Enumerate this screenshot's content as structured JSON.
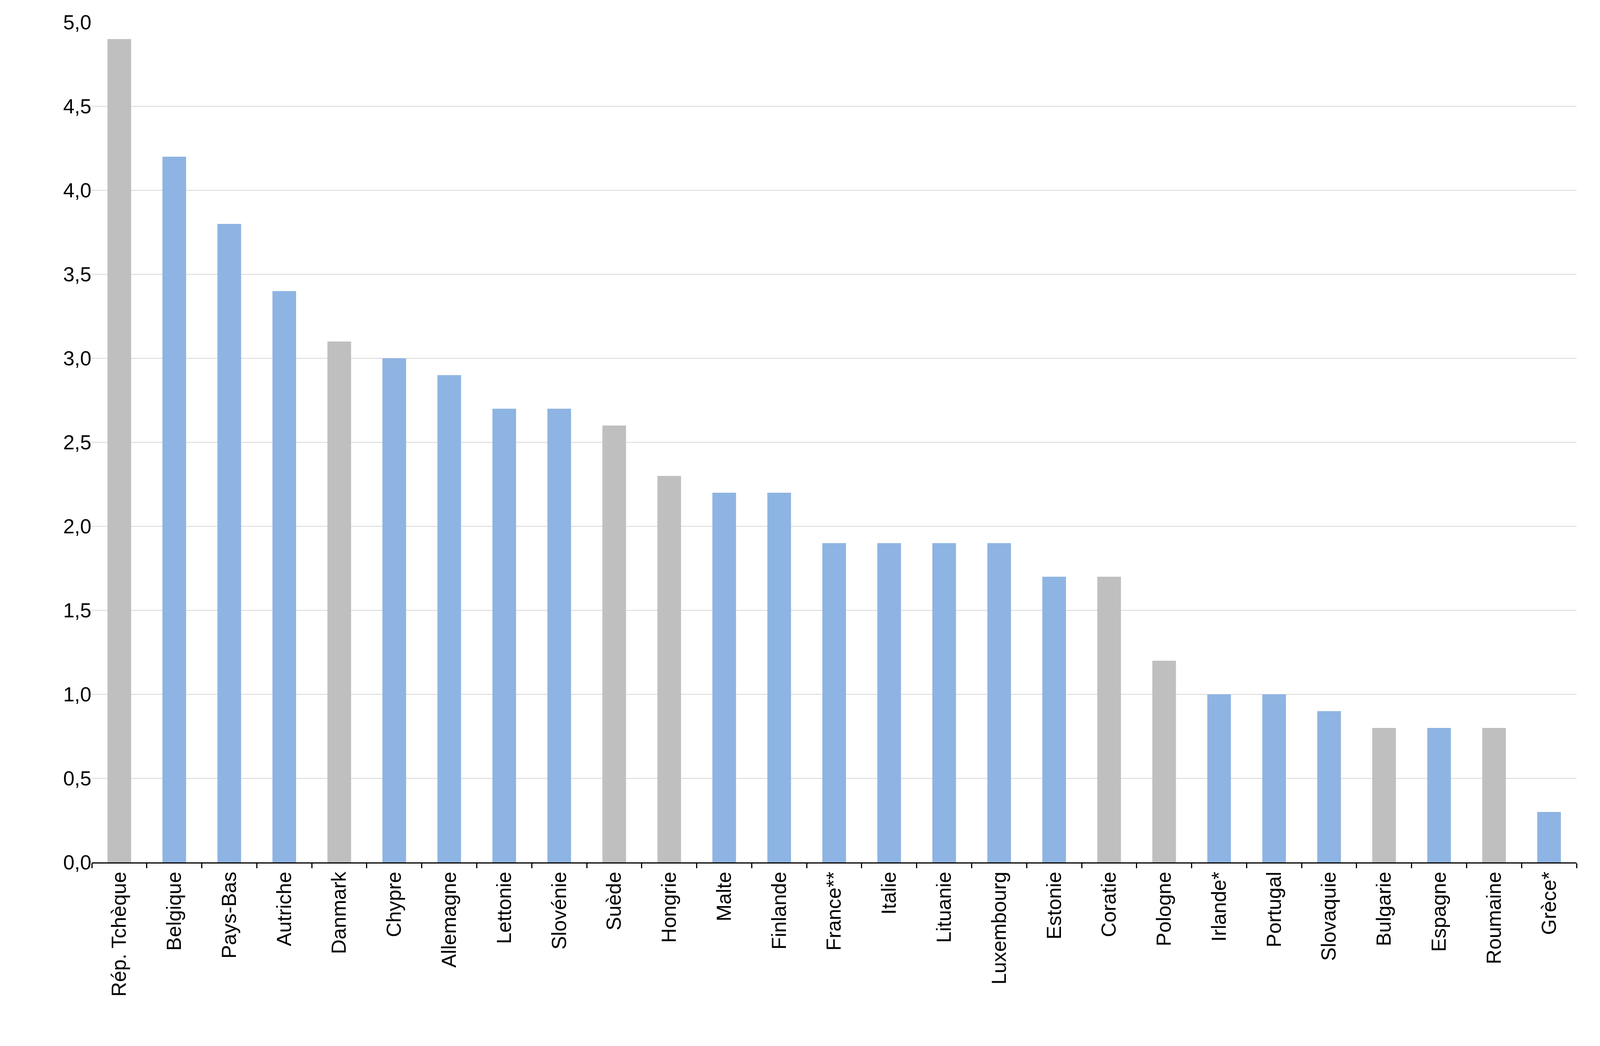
{
  "chart_data": {
    "type": "bar",
    "categories": [
      "Rép. Tchèque",
      "Belgique",
      "Pays-Bas",
      "Autriche",
      "Danmark",
      "Chypre",
      "Allemagne",
      "Lettonie",
      "Slovénie",
      "Suède",
      "Hongrie",
      "Malte",
      "Finlande",
      "France**",
      "Italie",
      "Lituanie",
      "Luxembourg",
      "Estonie",
      "Coratie",
      "Pologne",
      "Irlande*",
      "Portugal",
      "Slovaquie",
      "Bulgarie",
      "Espagne",
      "Roumaine",
      "Grèce*"
    ],
    "values": [
      4.9,
      4.2,
      3.8,
      3.4,
      3.1,
      3.0,
      2.9,
      2.7,
      2.7,
      2.6,
      2.3,
      2.2,
      2.2,
      1.9,
      1.9,
      1.9,
      1.9,
      1.7,
      1.7,
      1.2,
      1.0,
      1.0,
      0.9,
      0.8,
      0.8,
      0.8,
      0.3
    ],
    "colors": [
      "#bfbfbf",
      "#8eb4e3",
      "#8eb4e3",
      "#8eb4e3",
      "#bfbfbf",
      "#8eb4e3",
      "#8eb4e3",
      "#8eb4e3",
      "#8eb4e3",
      "#bfbfbf",
      "#bfbfbf",
      "#8eb4e3",
      "#8eb4e3",
      "#8eb4e3",
      "#8eb4e3",
      "#8eb4e3",
      "#8eb4e3",
      "#8eb4e3",
      "#bfbfbf",
      "#bfbfbf",
      "#8eb4e3",
      "#8eb4e3",
      "#8eb4e3",
      "#bfbfbf",
      "#8eb4e3",
      "#bfbfbf",
      "#8eb4e3"
    ],
    "ylim": [
      0,
      5
    ],
    "yticks": [
      {
        "value": 0,
        "label": "0,0"
      },
      {
        "value": 0.5,
        "label": "0,5"
      },
      {
        "value": 1,
        "label": "1,0"
      },
      {
        "value": 1.5,
        "label": "1,5"
      },
      {
        "value": 2,
        "label": "2,0"
      },
      {
        "value": 2.5,
        "label": "2,5"
      },
      {
        "value": 3,
        "label": "3,0"
      },
      {
        "value": 3.5,
        "label": "3,5"
      },
      {
        "value": 4,
        "label": "4,0"
      },
      {
        "value": 4.5,
        "label": "4,5"
      },
      {
        "value": 5,
        "label": "5,0"
      }
    ],
    "grid": true
  }
}
